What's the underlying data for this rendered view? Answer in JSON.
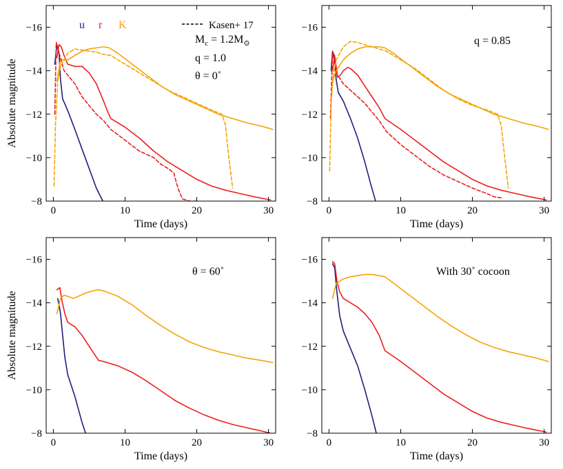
{
  "chart_data": [
    {
      "type": "line",
      "panel": "top-left",
      "xlabel": "Time (days)",
      "ylabel": "Absolute magnitude",
      "xlim": [
        -1,
        31
      ],
      "ylim": [
        -8,
        -17
      ],
      "y_inverted": true,
      "xticks": [
        0,
        10,
        20,
        30
      ],
      "yticks": [
        -8,
        -10,
        -12,
        -14,
        -16
      ],
      "legend": {
        "filters": [
          {
            "label": "u",
            "color": "#1b1f7a"
          },
          {
            "label": "r",
            "color": "#ee1c1c"
          },
          {
            "label": "K",
            "color": "#f5a300"
          }
        ],
        "dashed_label": "Kasen+ 17"
      },
      "annotations": [
        {
          "text": "Mc = 1.2M⊙",
          "main": "M",
          "sub": "c",
          "eq": " = 1.2M",
          "sub2": "⊙"
        },
        {
          "text": "q = 1.0"
        },
        {
          "text": "θ = 0˚"
        }
      ],
      "series": [
        {
          "name": "u",
          "color": "#1b1f7a",
          "dash": false,
          "x": [
            0.2,
            0.5,
            0.8,
            1.0,
            1.3,
            1.7,
            2.2,
            3,
            4,
            5,
            6,
            6.9
          ],
          "y": [
            -14.3,
            -15.2,
            -14.8,
            -13.6,
            -12.7,
            -12.4,
            -12.0,
            -11.3,
            -10.4,
            -9.5,
            -8.6,
            -8.0
          ]
        },
        {
          "name": "r",
          "color": "#ee1c1c",
          "dash": false,
          "x": [
            0.5,
            0.8,
            1.1,
            1.5,
            2,
            3,
            4,
            5,
            6,
            7,
            7.6,
            8,
            10,
            12,
            14,
            16,
            18,
            20,
            22,
            24,
            26,
            28,
            30.3
          ],
          "y": [
            -14.6,
            -15.2,
            -15.1,
            -14.7,
            -14.3,
            -14.2,
            -14.2,
            -13.9,
            -13.4,
            -12.6,
            -12.1,
            -11.8,
            -11.4,
            -10.9,
            -10.3,
            -9.8,
            -9.4,
            -9.0,
            -8.7,
            -8.5,
            -8.35,
            -8.2,
            -8.05
          ]
        },
        {
          "name": "K",
          "color": "#f5a300",
          "dash": false,
          "x": [
            0.5,
            1,
            2,
            3,
            4,
            5,
            6,
            7,
            7.8,
            9,
            11,
            13,
            15,
            17,
            19,
            21,
            23,
            25,
            27,
            29,
            30.6
          ],
          "y": [
            -13.5,
            -14.5,
            -14.5,
            -14.7,
            -14.9,
            -15.0,
            -15.05,
            -15.1,
            -15.05,
            -14.8,
            -14.3,
            -13.8,
            -13.3,
            -12.9,
            -12.6,
            -12.3,
            -12.0,
            -11.8,
            -11.6,
            -11.45,
            -11.3
          ]
        },
        {
          "name": "r (Kasen+ 17)",
          "color": "#ee1c1c",
          "dash": true,
          "x": [
            0.2,
            0.4,
            0.6,
            1,
            1.5,
            2,
            3,
            4,
            5,
            6,
            7,
            8,
            10,
            12,
            14,
            15,
            16,
            16.8,
            17.2,
            17.6,
            18,
            19,
            20
          ],
          "y": [
            -12.0,
            -15.3,
            -15.0,
            -14.6,
            -14.0,
            -13.8,
            -13.4,
            -12.8,
            -12.4,
            -12.0,
            -11.7,
            -11.3,
            -10.8,
            -10.3,
            -10.0,
            -9.7,
            -9.5,
            -9.3,
            -8.8,
            -8.4,
            -8.1,
            -8.0,
            -8.0
          ]
        },
        {
          "name": "K (Kasen+ 17)",
          "color": "#f5a300",
          "dash": true,
          "x": [
            0.1,
            0.3,
            0.6,
            1,
            2,
            3,
            4,
            5,
            6,
            7,
            8,
            10,
            12,
            14,
            16,
            18,
            20,
            22,
            23.5,
            24,
            24.3,
            25
          ],
          "y": [
            -8.7,
            -11.5,
            -13.5,
            -14.2,
            -14.8,
            -15.0,
            -14.95,
            -14.9,
            -14.85,
            -14.75,
            -14.7,
            -14.3,
            -13.9,
            -13.5,
            -13.1,
            -12.8,
            -12.5,
            -12.2,
            -12.0,
            -11.5,
            -10.5,
            -8.6
          ]
        }
      ]
    },
    {
      "type": "line",
      "panel": "top-right",
      "xlabel": "Time (days)",
      "ylabel": "",
      "xlim": [
        -1,
        31
      ],
      "ylim": [
        -8,
        -17
      ],
      "y_inverted": true,
      "xticks": [
        0,
        10,
        20,
        30
      ],
      "yticks": [
        -8,
        -10,
        -12,
        -14,
        -16
      ],
      "annotations": [
        {
          "text": "q = 0.85"
        }
      ],
      "series": [
        {
          "name": "u",
          "color": "#1b1f7a",
          "dash": false,
          "x": [
            0.3,
            0.5,
            0.8,
            1.0,
            1.3,
            2,
            3,
            4,
            5,
            5.8,
            6.5
          ],
          "y": [
            -14.0,
            -14.9,
            -14.6,
            -13.6,
            -13.0,
            -12.6,
            -11.8,
            -10.9,
            -9.8,
            -8.8,
            -8.0
          ]
        },
        {
          "name": "r",
          "color": "#ee1c1c",
          "dash": false,
          "x": [
            0.5,
            0.8,
            1.2,
            1.6,
            2,
            2.6,
            3,
            4,
            5,
            6,
            7,
            7.8,
            10,
            12,
            14,
            16,
            18,
            20,
            22,
            24,
            26,
            28,
            30.3
          ],
          "y": [
            -14.0,
            -14.7,
            -13.7,
            -13.8,
            -14.0,
            -14.15,
            -14.1,
            -13.8,
            -13.3,
            -12.8,
            -12.3,
            -11.8,
            -11.3,
            -10.8,
            -10.3,
            -9.8,
            -9.4,
            -9.0,
            -8.7,
            -8.5,
            -8.35,
            -8.2,
            -8.05
          ]
        },
        {
          "name": "K",
          "color": "#f5a300",
          "dash": false,
          "x": [
            0.4,
            1,
            2,
            3,
            4,
            5,
            6,
            7,
            7.8,
            9,
            11,
            13,
            15,
            17,
            19,
            21,
            23,
            25,
            27,
            29,
            30.6
          ],
          "y": [
            -13.4,
            -14.0,
            -14.5,
            -14.8,
            -15.0,
            -15.1,
            -15.1,
            -15.1,
            -15.05,
            -14.8,
            -14.3,
            -13.8,
            -13.3,
            -12.9,
            -12.6,
            -12.3,
            -12.0,
            -11.8,
            -11.6,
            -11.45,
            -11.3
          ]
        },
        {
          "name": "r (Kasen+ 17)",
          "color": "#ee1c1c",
          "dash": true,
          "x": [
            0.2,
            0.5,
            0.8,
            1.2,
            2,
            3,
            4,
            5,
            6,
            7,
            8,
            10,
            12,
            14,
            16,
            18,
            20,
            22,
            23,
            24
          ],
          "y": [
            -11.8,
            -14.9,
            -14.3,
            -13.8,
            -13.4,
            -13.1,
            -12.8,
            -12.5,
            -12.1,
            -11.7,
            -11.2,
            -10.6,
            -10.1,
            -9.6,
            -9.2,
            -8.9,
            -8.6,
            -8.35,
            -8.2,
            -8.15
          ]
        },
        {
          "name": "K (Kasen+ 17)",
          "color": "#f5a300",
          "dash": true,
          "x": [
            0.1,
            0.3,
            0.6,
            1,
            2,
            3,
            4,
            5,
            6,
            7,
            8,
            10,
            12,
            14,
            16,
            18,
            20,
            22,
            23.5,
            24,
            24.3,
            25
          ],
          "y": [
            -9.4,
            -12.5,
            -13.8,
            -14.5,
            -15.1,
            -15.35,
            -15.3,
            -15.2,
            -15.1,
            -15.0,
            -14.9,
            -14.5,
            -14.1,
            -13.6,
            -13.1,
            -12.7,
            -12.4,
            -12.2,
            -12.0,
            -11.5,
            -10.6,
            -8.6
          ]
        }
      ]
    },
    {
      "type": "line",
      "panel": "bottom-left",
      "xlabel": "Time (days)",
      "ylabel": "Absolute magnitude",
      "xlim": [
        -1,
        31
      ],
      "ylim": [
        -8,
        -17
      ],
      "y_inverted": true,
      "xticks": [
        0,
        10,
        20,
        30
      ],
      "yticks": [
        -8,
        -10,
        -12,
        -14,
        -16
      ],
      "annotations": [
        {
          "text": "θ = 60˚"
        }
      ],
      "series": [
        {
          "name": "u",
          "color": "#1b1f7a",
          "dash": false,
          "x": [
            0.6,
            0.8,
            1.0,
            1.3,
            1.6,
            2,
            2.5,
            3,
            3.5,
            4,
            4.5
          ],
          "y": [
            -14.2,
            -13.9,
            -13.5,
            -12.5,
            -11.5,
            -10.7,
            -10.2,
            -9.7,
            -9.1,
            -8.5,
            -8.0
          ]
        },
        {
          "name": "r",
          "color": "#ee1c1c",
          "dash": false,
          "x": [
            0.5,
            0.9,
            1.2,
            1.6,
            2,
            3,
            4,
            5,
            6.3,
            7,
            9,
            11,
            13,
            15,
            17,
            19,
            21,
            23,
            25,
            27,
            29,
            30.3
          ],
          "y": [
            -14.6,
            -14.7,
            -14.1,
            -13.5,
            -13.1,
            -12.9,
            -12.5,
            -12.0,
            -11.35,
            -11.3,
            -11.1,
            -10.8,
            -10.4,
            -9.95,
            -9.5,
            -9.15,
            -8.85,
            -8.6,
            -8.4,
            -8.25,
            -8.1,
            -8.0
          ]
        },
        {
          "name": "K",
          "color": "#f5a300",
          "dash": false,
          "x": [
            0.5,
            1,
            1.5,
            2,
            2.8,
            3.5,
            4.5,
            5.5,
            6.3,
            7,
            9,
            11,
            13,
            15,
            17,
            19,
            21,
            23,
            25,
            27,
            29,
            30.6
          ],
          "y": [
            -13.5,
            -14.2,
            -14.35,
            -14.3,
            -14.2,
            -14.3,
            -14.45,
            -14.55,
            -14.6,
            -14.55,
            -14.3,
            -13.9,
            -13.4,
            -12.95,
            -12.55,
            -12.2,
            -11.95,
            -11.75,
            -11.6,
            -11.45,
            -11.35,
            -11.25
          ]
        }
      ]
    },
    {
      "type": "line",
      "panel": "bottom-right",
      "xlabel": "Time (days)",
      "ylabel": "",
      "xlim": [
        -1,
        31
      ],
      "ylim": [
        -8,
        -17
      ],
      "y_inverted": true,
      "xticks": [
        0,
        10,
        20,
        30
      ],
      "yticks": [
        -8,
        -10,
        -12,
        -14,
        -16
      ],
      "annotations": [
        {
          "text": "With 30˚ cocoon"
        }
      ],
      "series": [
        {
          "name": "u",
          "color": "#1b1f7a",
          "dash": false,
          "x": [
            0.5,
            0.8,
            1.1,
            1.5,
            2,
            2.5,
            3,
            4,
            5,
            6,
            6.6
          ],
          "y": [
            -15.8,
            -15.6,
            -14.5,
            -13.4,
            -12.7,
            -12.3,
            -11.9,
            -11.1,
            -10.0,
            -8.8,
            -8.0
          ]
        },
        {
          "name": "r",
          "color": "#ee1c1c",
          "dash": false,
          "x": [
            0.5,
            0.8,
            1.1,
            1.5,
            2,
            3,
            4,
            5,
            6,
            7,
            7.8,
            10,
            12,
            14,
            16,
            18,
            20,
            22,
            24,
            26,
            28,
            30.3
          ],
          "y": [
            -15.9,
            -15.8,
            -15.0,
            -14.5,
            -14.2,
            -14.0,
            -13.8,
            -13.5,
            -13.1,
            -12.5,
            -11.8,
            -11.3,
            -10.8,
            -10.3,
            -9.8,
            -9.4,
            -9.0,
            -8.7,
            -8.5,
            -8.35,
            -8.2,
            -8.05
          ]
        },
        {
          "name": "K",
          "color": "#f5a300",
          "dash": false,
          "x": [
            0.5,
            1,
            2,
            3,
            4,
            5,
            6,
            7,
            7.8,
            9,
            11,
            13,
            15,
            17,
            19,
            21,
            23,
            25,
            27,
            29,
            30.6
          ],
          "y": [
            -14.2,
            -14.9,
            -15.1,
            -15.2,
            -15.25,
            -15.3,
            -15.3,
            -15.25,
            -15.2,
            -14.9,
            -14.4,
            -13.9,
            -13.4,
            -12.95,
            -12.55,
            -12.2,
            -11.95,
            -11.75,
            -11.6,
            -11.45,
            -11.3
          ]
        }
      ]
    }
  ]
}
